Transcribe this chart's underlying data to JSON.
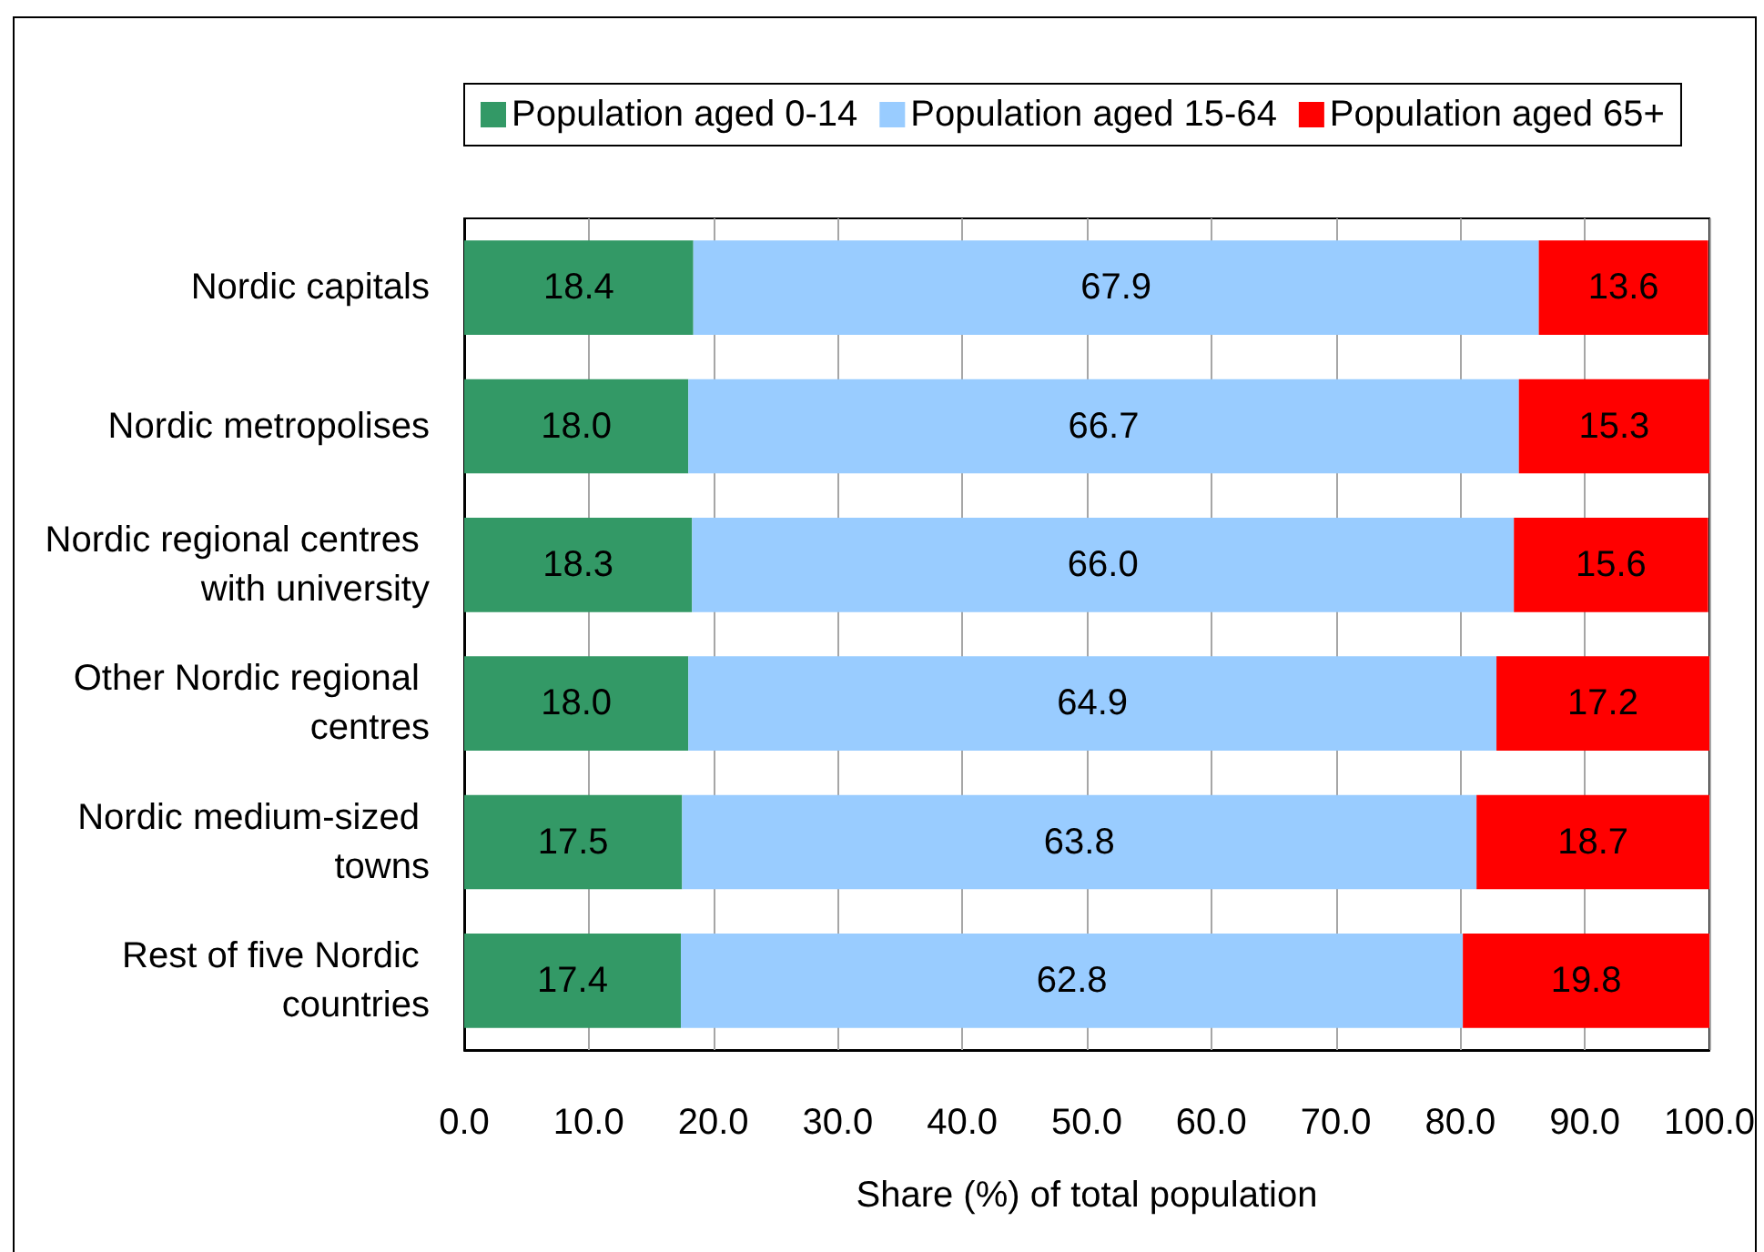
{
  "chart_data": {
    "type": "bar",
    "orientation": "horizontal",
    "stacked": true,
    "categories": [
      "Nordic capitals",
      "Nordic metropolises",
      "Nordic regional centres with university",
      "Other Nordic regional centres",
      "Nordic medium-sized towns",
      "Rest of five Nordic countries"
    ],
    "series": [
      {
        "name": "Population aged 0-14",
        "color": "#339966",
        "values": [
          18.4,
          18.0,
          18.3,
          18.0,
          17.5,
          17.4
        ],
        "value_labels": [
          "18.4",
          "18.0",
          "18.3",
          "18.0",
          "17.5",
          "17.4"
        ]
      },
      {
        "name": "Population aged 15-64",
        "color": "#99ccff",
        "values": [
          67.9,
          66.7,
          66.0,
          64.9,
          63.8,
          62.8
        ],
        "value_labels": [
          "67.9",
          "66.7",
          "66.0",
          "64.9",
          "63.8",
          "62.8"
        ]
      },
      {
        "name": "Population aged 65+",
        "color": "#ff0000",
        "values": [
          13.6,
          15.3,
          15.6,
          17.2,
          18.7,
          19.8
        ],
        "value_labels": [
          "13.6",
          "15.3",
          "15.6",
          "17.2",
          "18.7",
          "19.8"
        ]
      }
    ],
    "xlabel": "Share (%) of total population",
    "xlim": [
      0,
      100
    ],
    "xticks": [
      {
        "value": 0,
        "label": "0.0"
      },
      {
        "value": 10,
        "label": "10.0"
      },
      {
        "value": 20,
        "label": "20.0"
      },
      {
        "value": 30,
        "label": "30.0"
      },
      {
        "value": 40,
        "label": "40.0"
      },
      {
        "value": 50,
        "label": "50.0"
      },
      {
        "value": 60,
        "label": "60.0"
      },
      {
        "value": 70,
        "label": "70.0"
      },
      {
        "value": 80,
        "label": "80.0"
      },
      {
        "value": 90,
        "label": "90.0"
      },
      {
        "value": 100,
        "label": "100.0"
      }
    ],
    "grid": "x",
    "legend": "top"
  }
}
